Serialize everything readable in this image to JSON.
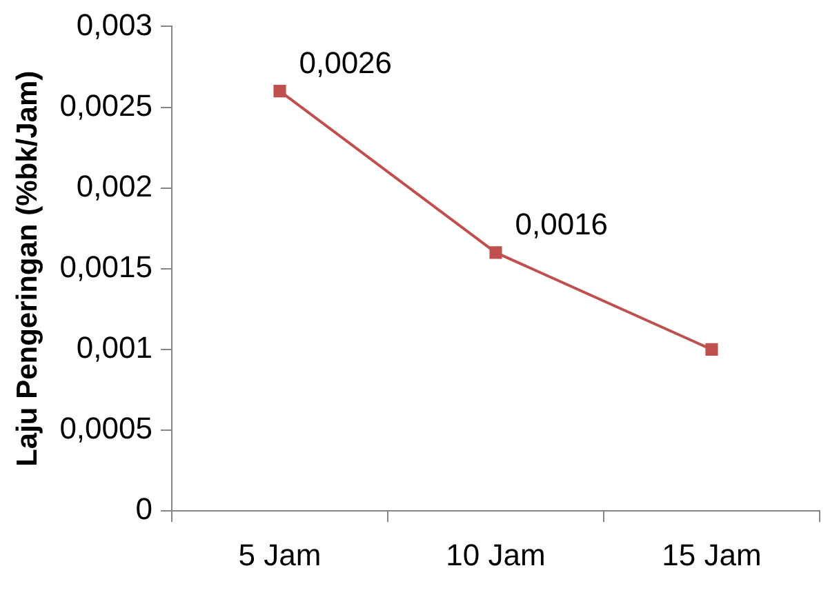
{
  "chart_data": {
    "type": "line",
    "ylabel": "Laju Pengeringan (%bk/Jam)",
    "categories": [
      "5 Jam",
      "10 Jam",
      "15 Jam"
    ],
    "series": [
      {
        "color": "#c0504d",
        "values": [
          0.0026,
          0.0016,
          0.001
        ],
        "value_labels": [
          "0,0026",
          "0,0016",
          null
        ]
      }
    ],
    "ylim": [
      0,
      0.003
    ],
    "yticks": [
      0,
      {
        "value": 0.0005,
        "label": "0,0005"
      },
      {
        "value": 0.001,
        "label": "0,001"
      },
      {
        "value": 0.0015,
        "label": "0,0015"
      },
      {
        "value": 0.002,
        "label": "0,002"
      },
      {
        "value": 0.0025,
        "label": "0,0025"
      },
      {
        "value": 0.003,
        "label": "0,003"
      }
    ],
    "grid": false,
    "legend": false,
    "marker": "square",
    "line_style": "solid"
  }
}
